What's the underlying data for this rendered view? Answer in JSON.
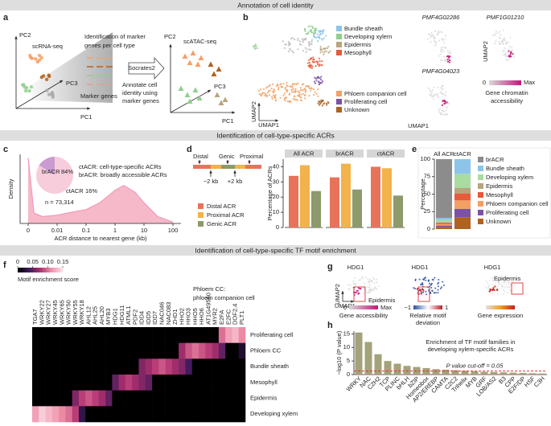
{
  "section_headers": [
    "Annotation of cell identity",
    "Identification of cell-type-specific ACRs",
    "Identification of cell-type-specific TF motif enrichment"
  ],
  "panel_letters": [
    "a",
    "b",
    "c",
    "d",
    "e",
    "f",
    "g",
    "h"
  ],
  "panel_a": {
    "pc2_left": "PC2",
    "scrna": "scRNA-seq",
    "marker_id": [
      "Identification of marker",
      "genes per cell type"
    ],
    "pc3_left": "PC3",
    "pc1_left": "PC1",
    "marker_genes": "Marker genes",
    "socrates": "Socrates2",
    "annotate": [
      "Annotate cell",
      "identity using",
      "marker genes"
    ],
    "scatac": "scATAC-seq",
    "pc2_right": "PC2",
    "pc3_right": "PC3",
    "pc1_right": "PC1"
  },
  "panel_b": {
    "legend_top": [
      {
        "name": "Bundle sheath",
        "color": "#8cc4ea"
      },
      {
        "name": "Developing xylem",
        "color": "#8fd08c"
      },
      {
        "name": "Epidermis",
        "color": "#b7a57c"
      },
      {
        "name": "Mesophyll",
        "color": "#e85a3a"
      }
    ],
    "legend_bottom": [
      {
        "name": "Phloem companion cell",
        "color": "#f4a064"
      },
      {
        "name": "Proliferating cell",
        "color": "#7b52a6"
      },
      {
        "name": "Unknown",
        "color": "#b0621f"
      }
    ],
    "umap2": "UMAP2",
    "umap1": "UMAP1",
    "gene_titles": [
      "PMF4G02286",
      "PMF1G01210",
      "PMF4G04023"
    ],
    "small_umap2": "UMAP2",
    "small_umap1": "UMAP1",
    "colorbar": {
      "low": "0",
      "high": "Max",
      "colors": [
        "#d9d9d9",
        "#c2187a"
      ]
    },
    "colorbar_title": [
      "Gene chromatin",
      "accessibility"
    ]
  },
  "panel_d_schematic": {
    "distal": "Distal",
    "genic": "Genic",
    "proximal": "Proximal",
    "minus": "−2 kb",
    "plus": "+2 kb"
  },
  "panel_g": {
    "titles": [
      "HDG1",
      "HDG1",
      "HDG1"
    ],
    "epidermis": [
      "Epidermis",
      "Epidermis"
    ],
    "umap2": "UMAP2",
    "umap1": "UMAP1",
    "box_color": "#e03030",
    "colorbars": [
      {
        "low": "0",
        "high": "Max",
        "title": [
          "Gene accessibility"
        ],
        "colors": [
          "#d9d9d9",
          "#c2187a"
        ]
      },
      {
        "low": "−1",
        "high": "1",
        "title": [
          "Relative motif",
          "deviation"
        ],
        "colors": [
          "#2a4fa0",
          "#ffffff",
          "#c0202a"
        ]
      },
      {
        "title": [
          "Gene expression"
        ],
        "colors": [
          "#e0e0e0",
          "#f4a020",
          "#c02020"
        ]
      }
    ]
  },
  "chart_data": [
    {
      "type": "line",
      "y_label": "Density",
      "x_label": "ACR distance to nearest gene (kb)",
      "xscale": "symlog",
      "x": [
        0,
        0.002,
        0.005,
        0.01,
        0.03,
        0.1,
        0.3,
        1,
        2,
        5,
        10,
        30,
        100
      ],
      "values": [
        0.95,
        0.15,
        0.1,
        0.12,
        0.16,
        0.2,
        0.3,
        0.48,
        0.55,
        0.45,
        0.3,
        0.1,
        0.02
      ],
      "color": "#f29bb3",
      "xlim": [
        0,
        100
      ],
      "ylim": [
        0,
        1
      ],
      "xticks": [
        0,
        0.01,
        0.1,
        1,
        10,
        100
      ],
      "annotation": "n = 73,314"
    },
    {
      "type": "pie",
      "categories": [
        "brACR",
        "ctACR"
      ],
      "values": [
        84,
        16
      ],
      "value_labels": [
        "84%",
        "16%"
      ],
      "colors": [
        "#f7cddb",
        "#c99bd0"
      ],
      "notes": [
        "ctACR: cell-type-specific ACRs",
        "brACR: broadly accessible ACRs"
      ]
    },
    {
      "type": "bar",
      "y_label": "Percentage of ACRs",
      "categories": [
        "All ACR",
        "brACR",
        "ctACR"
      ],
      "series": [
        {
          "name": "Distal ACR",
          "color": "#e8735a",
          "values": [
            34,
            33,
            40
          ]
        },
        {
          "name": "Proximal ACR",
          "color": "#f2b24c",
          "values": [
            41,
            42,
            39
          ]
        },
        {
          "name": "Genic ACR",
          "color": "#8c9a6c",
          "values": [
            24,
            25,
            21
          ]
        }
      ],
      "ylim": [
        0,
        45
      ],
      "yticks": [
        0,
        10,
        20,
        30,
        40
      ]
    },
    {
      "type": "stacked_bar",
      "y_label": "Percentage",
      "categories": [
        "All ACR",
        "ctACR"
      ],
      "series": [
        {
          "name": "brACR",
          "color": "#8c8c8c",
          "values": [
            84,
            0
          ]
        },
        {
          "name": "Bundle sheath",
          "color": "#8cc4ea",
          "values": [
            3,
            21
          ]
        },
        {
          "name": "Developing xylem",
          "color": "#a8dca0",
          "values": [
            3,
            20
          ]
        },
        {
          "name": "Epidermis",
          "color": "#b7a57c",
          "values": [
            1,
            8
          ]
        },
        {
          "name": "Mesophyll",
          "color": "#e85a3a",
          "values": [
            2,
            10
          ]
        },
        {
          "name": "Phloem companion cell",
          "color": "#f4a064",
          "values": [
            2,
            12
          ]
        },
        {
          "name": "Proliferating cell",
          "color": "#7b52a6",
          "values": [
            2,
            12
          ]
        },
        {
          "name": "Unknown",
          "color": "#b0621f",
          "values": [
            3,
            17
          ]
        }
      ],
      "ylim": [
        0,
        100
      ],
      "yticks": [
        0,
        25,
        50,
        75,
        100
      ]
    },
    {
      "type": "heatmap",
      "colorbar_title": "Motif enrichment score",
      "annotation": [
        "Phloem CC:",
        "phloem companion cell"
      ],
      "columns": [
        "TGA7",
        "WRKY22",
        "WRKY27",
        "WRKY45",
        "WRKY65",
        "WRKY50",
        "WRKY55",
        "WRKY18",
        "AHL12",
        "AHL25",
        "AHL20",
        "MYB3",
        "HDG1",
        "HDG11",
        "ATML1",
        "PDF2",
        "IDD4",
        "IDD5",
        "IDD7",
        "NAC046",
        "NAC083",
        "ZHD1",
        "HHO2",
        "HHO3",
        "HHO5",
        "HHO6",
        "AT1G49560",
        "MYR2",
        "E2FA",
        "E2FC",
        "DOF2.4",
        "PLT1"
      ],
      "rows": [
        "Proliferating cell",
        "Phloem CC",
        "Bundle sheath",
        "Mesophyll",
        "Epidermis",
        "Developing xylem"
      ],
      "values": [
        [
          0,
          0,
          0,
          0,
          0,
          0,
          0,
          0,
          0,
          0,
          0,
          0,
          0,
          0,
          0,
          0,
          0,
          0,
          0,
          0,
          0,
          0,
          0,
          0,
          0,
          0,
          0,
          0,
          0.1,
          0.12,
          0.13,
          0.11
        ],
        [
          0,
          0,
          0,
          0,
          0,
          0,
          0,
          0,
          0,
          0,
          0,
          0,
          0,
          0,
          0,
          0,
          0,
          0,
          0,
          0,
          0,
          0,
          0.07,
          0.09,
          0.1,
          0.09,
          0.08,
          0.07,
          0.05,
          0,
          0,
          0.02
        ],
        [
          0,
          0,
          0,
          0,
          0,
          0,
          0,
          0,
          0,
          0,
          0,
          0,
          0,
          0,
          0,
          0,
          0.06,
          0.07,
          0.08,
          0.09,
          0.08,
          0.07,
          0.06,
          0.04,
          0,
          0,
          0,
          0,
          0,
          0,
          0,
          0
        ],
        [
          0,
          0,
          0,
          0,
          0,
          0,
          0,
          0,
          0,
          0,
          0,
          0,
          0.05,
          0.07,
          0.08,
          0.07,
          0.06,
          0.05,
          0,
          0,
          0,
          0,
          0,
          0,
          0,
          0,
          0,
          0,
          0,
          0,
          0,
          0
        ],
        [
          0,
          0,
          0,
          0,
          0,
          0,
          0.06,
          0.08,
          0.09,
          0.08,
          0.07,
          0.05,
          0,
          0,
          0,
          0,
          0,
          0,
          0,
          0,
          0,
          0,
          0,
          0,
          0,
          0,
          0,
          0,
          0,
          0,
          0,
          0
        ],
        [
          0.12,
          0.14,
          0.13,
          0.12,
          0.11,
          0.1,
          0.08,
          0.03,
          0,
          0,
          0,
          0,
          0,
          0,
          0,
          0,
          0,
          0,
          0,
          0,
          0,
          0,
          0,
          0,
          0,
          0,
          0,
          0,
          0,
          0,
          0,
          0
        ]
      ],
      "zlim": [
        0,
        0.15
      ],
      "zticks": [
        0,
        0.05,
        {
          "value": 0.1,
          "label": "0.10"
        },
        0.15
      ],
      "colors": [
        "#000000",
        "#3b1a5a",
        "#b0306e",
        "#f090a8",
        "#fbe3ec"
      ]
    },
    {
      "type": "bar",
      "title": [
        "Enrichment of TF motif families in",
        "developing xylem-specific ACRs"
      ],
      "y_label": "−log10 (P value)",
      "categories": [
        "WRKY",
        "NAC",
        "C2H2",
        "TCP",
        "PLINC",
        "bHLH",
        "bZIP",
        "Homeobox",
        "AP2/EREBP",
        "CAMTA",
        "C2C2",
        "Trihelix",
        "MYB",
        "GRF",
        "LOB/AS2",
        "B3",
        "CPP",
        "E2F/DP",
        "HSF",
        "C3H"
      ],
      "values": [
        15.5,
        12,
        7.5,
        5,
        4,
        3.2,
        2.8,
        2.4,
        2,
        1.8,
        1.6,
        1.4,
        1.2,
        1.0,
        0.9,
        0.8,
        0.7,
        0.6,
        0.5,
        0.4
      ],
      "color": "#a3a27a",
      "label_colors": [
        "#e03030",
        "#333333",
        "#333333",
        "#333333",
        "#333333",
        "#333333",
        "#333333",
        "#333333",
        "#333333",
        "#333333",
        "#333333",
        "#333333",
        "#333333",
        "#333333",
        "#333333",
        "#333333",
        "#333333",
        "#333333",
        "#333333",
        "#333333"
      ],
      "ylim": [
        0,
        16
      ],
      "yticks": [
        0,
        5,
        10,
        15
      ],
      "threshold": 1.3,
      "threshold_label": "P value cut-off = 0.05",
      "threshold_color": "#e03030"
    }
  ]
}
